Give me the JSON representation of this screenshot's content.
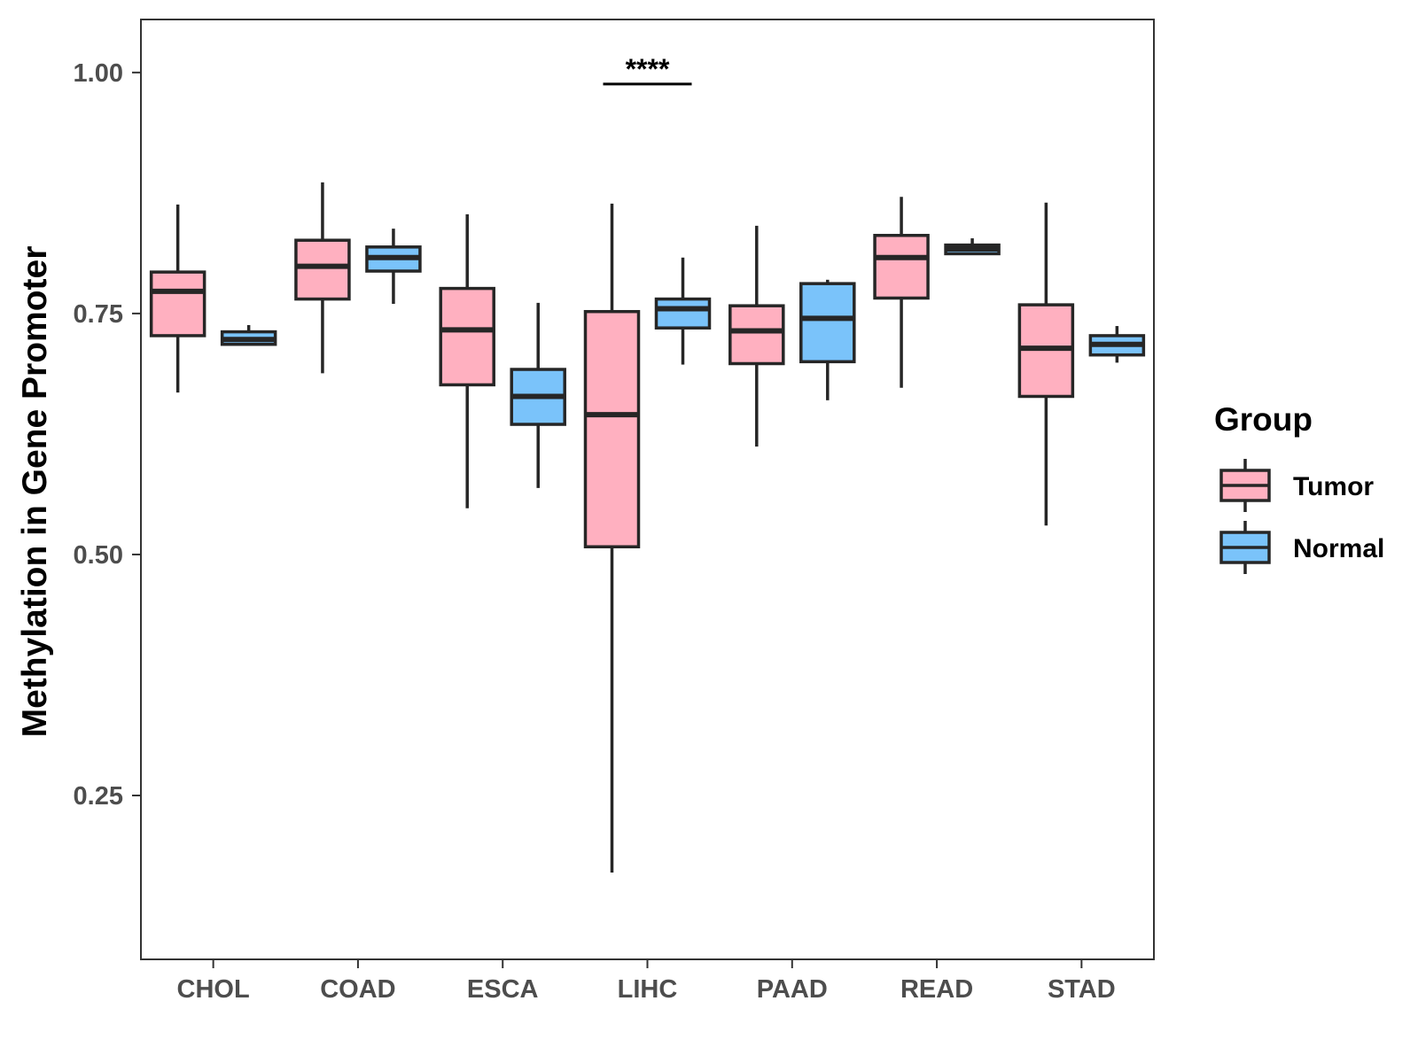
{
  "chart_data": {
    "type": "boxplot",
    "title": "",
    "xlabel": "",
    "ylabel": "Methylation in Gene Promoter",
    "ylim": [
      0.08,
      1.055
    ],
    "yticks": [
      0.25,
      0.5,
      0.75,
      1.0
    ],
    "ytick_labels": [
      "0.25",
      "0.50",
      "0.75",
      "1.00"
    ],
    "categories": [
      "CHOL",
      "COAD",
      "ESCA",
      "LIHC",
      "PAAD",
      "READ",
      "STAD"
    ],
    "legend": {
      "title": "Group",
      "position": "right",
      "entries": [
        {
          "name": "Tumor",
          "color": "#FFB0C0"
        },
        {
          "name": "Normal",
          "color": "#7AC3FA"
        }
      ]
    },
    "series": [
      {
        "name": "Tumor",
        "color": "#FFB0C0",
        "boxes": [
          {
            "min": 0.668,
            "q1": 0.727,
            "median": 0.773,
            "q3": 0.793,
            "max": 0.863
          },
          {
            "min": 0.688,
            "q1": 0.765,
            "median": 0.799,
            "q3": 0.826,
            "max": 0.886
          },
          {
            "min": 0.548,
            "q1": 0.676,
            "median": 0.733,
            "q3": 0.776,
            "max": 0.853
          },
          {
            "min": 0.17,
            "q1": 0.508,
            "median": 0.645,
            "q3": 0.752,
            "max": 0.864
          },
          {
            "min": 0.612,
            "q1": 0.698,
            "median": 0.732,
            "q3": 0.758,
            "max": 0.841
          },
          {
            "min": 0.673,
            "q1": 0.766,
            "median": 0.808,
            "q3": 0.831,
            "max": 0.871
          },
          {
            "min": 0.53,
            "q1": 0.664,
            "median": 0.714,
            "q3": 0.759,
            "max": 0.865
          }
        ]
      },
      {
        "name": "Normal",
        "color": "#7AC3FA",
        "boxes": [
          {
            "min": 0.718,
            "q1": 0.718,
            "median": 0.723,
            "q3": 0.731,
            "max": 0.738
          },
          {
            "min": 0.76,
            "q1": 0.794,
            "median": 0.808,
            "q3": 0.819,
            "max": 0.838
          },
          {
            "min": 0.569,
            "q1": 0.635,
            "median": 0.664,
            "q3": 0.692,
            "max": 0.761
          },
          {
            "min": 0.697,
            "q1": 0.735,
            "median": 0.755,
            "q3": 0.765,
            "max": 0.808
          },
          {
            "min": 0.66,
            "q1": 0.7,
            "median": 0.745,
            "q3": 0.781,
            "max": 0.785
          },
          {
            "min": 0.812,
            "q1": 0.812,
            "median": 0.817,
            "q3": 0.821,
            "max": 0.828
          },
          {
            "min": 0.699,
            "q1": 0.707,
            "median": 0.718,
            "q3": 0.727,
            "max": 0.737
          }
        ]
      }
    ],
    "annotations": [
      {
        "text": "****",
        "category": "LIHC",
        "y": 0.988
      }
    ]
  }
}
